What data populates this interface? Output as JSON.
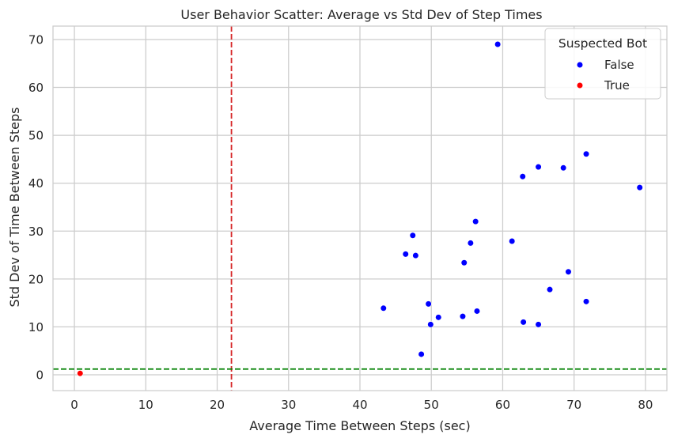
{
  "chart_data": {
    "type": "scatter",
    "title": "User Behavior Scatter: Average vs Std Dev of Step Times",
    "xlabel": "Average Time Between Steps (sec)",
    "ylabel": "Std Dev of Time Between Steps",
    "xlim": [
      -3,
      83
    ],
    "ylim": [
      -3.3,
      72.8
    ],
    "xticks": [
      0,
      10,
      20,
      30,
      40,
      50,
      60,
      70,
      80
    ],
    "yticks": [
      0,
      10,
      20,
      30,
      40,
      50,
      60,
      70
    ],
    "grid": true,
    "legend": {
      "title": "Suspected Bot",
      "placement": "top-right",
      "entries": [
        {
          "label": "False",
          "color": "#0000ff"
        },
        {
          "label": "True",
          "color": "#ff0000"
        }
      ]
    },
    "reference_lines": [
      {
        "orientation": "vertical",
        "value": 22,
        "color": "#d62728",
        "style": "dashed"
      },
      {
        "orientation": "horizontal",
        "value": 1.2,
        "color": "#008000",
        "style": "dashed"
      }
    ],
    "series": [
      {
        "name": "False",
        "color": "#0000ff",
        "points": [
          [
            59.3,
            69.0
          ],
          [
            71.7,
            46.1
          ],
          [
            65.0,
            43.4
          ],
          [
            68.5,
            43.2
          ],
          [
            62.8,
            41.4
          ],
          [
            79.2,
            39.1
          ],
          [
            56.2,
            32.0
          ],
          [
            47.4,
            29.1
          ],
          [
            61.3,
            27.9
          ],
          [
            55.5,
            27.5
          ],
          [
            46.4,
            25.2
          ],
          [
            47.8,
            24.9
          ],
          [
            54.6,
            23.4
          ],
          [
            69.2,
            21.5
          ],
          [
            66.6,
            17.8
          ],
          [
            71.7,
            15.3
          ],
          [
            49.6,
            14.8
          ],
          [
            43.3,
            13.9
          ],
          [
            56.4,
            13.3
          ],
          [
            51.0,
            12.0
          ],
          [
            54.4,
            12.2
          ],
          [
            49.9,
            10.5
          ],
          [
            62.9,
            11.0
          ],
          [
            65.0,
            10.5
          ],
          [
            48.6,
            4.3
          ]
        ]
      },
      {
        "name": "True",
        "color": "#ff0000",
        "points": [
          [
            0.8,
            0.3
          ]
        ]
      }
    ]
  }
}
